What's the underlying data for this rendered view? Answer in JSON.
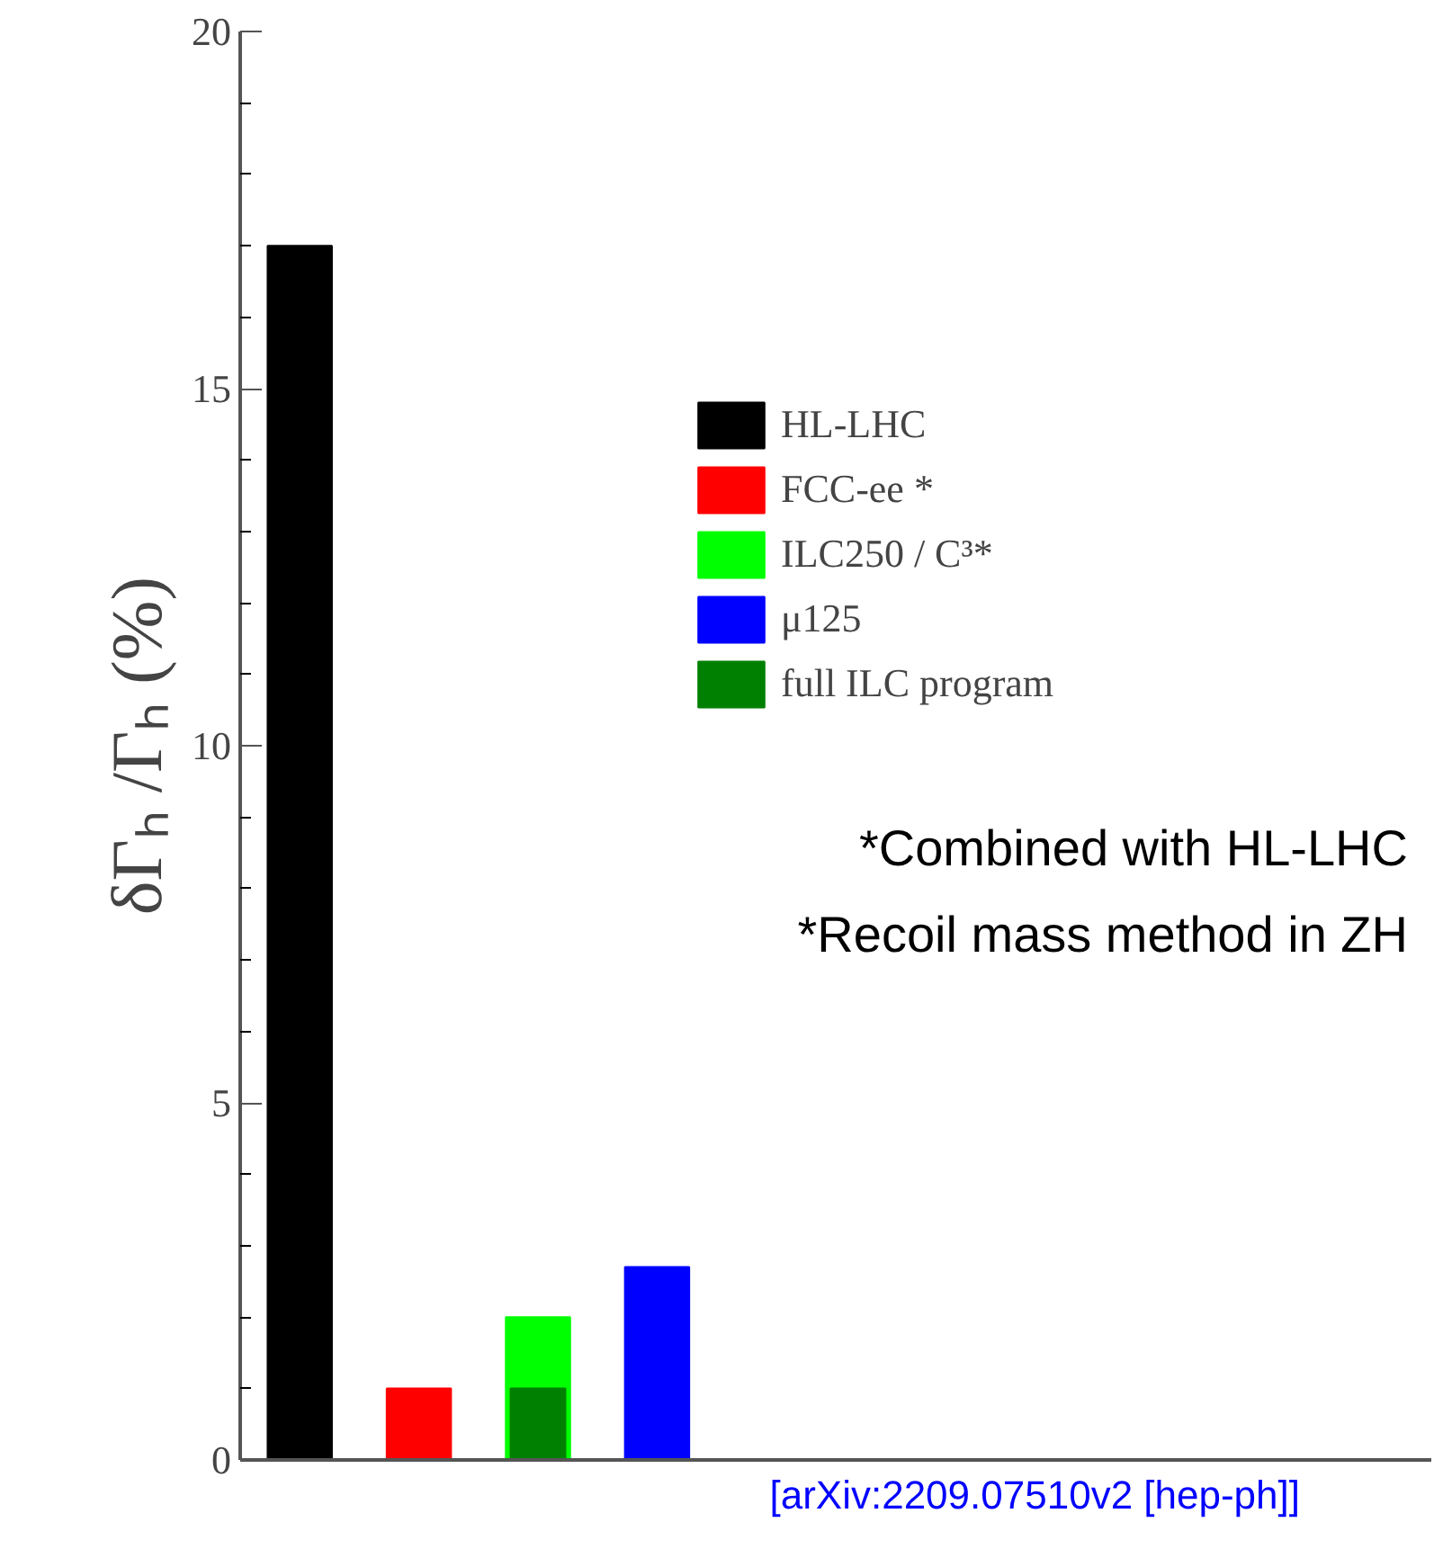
{
  "chart_data": {
    "type": "bar",
    "ylabel": "δΓₕ /Γₕ (%)",
    "categories": [
      null,
      null,
      null,
      null,
      null,
      null,
      null,
      null,
      null,
      null
    ],
    "series": [
      {
        "name": "HL-LHC",
        "color": "#000000",
        "values": [
          17,
          null,
          null,
          null,
          null,
          null,
          null,
          null,
          null,
          null
        ]
      },
      {
        "name": "FCC-ee *",
        "color": "#ff0000",
        "values": [
          null,
          1,
          null,
          null,
          null,
          null,
          null,
          null,
          null,
          null
        ]
      },
      {
        "name": "ILC250 / C³*",
        "color": "#00ff00",
        "values": [
          null,
          null,
          2,
          null,
          null,
          null,
          null,
          null,
          null,
          null
        ]
      },
      {
        "name": "μ125",
        "color": "#0000ff",
        "values": [
          null,
          null,
          null,
          2.7,
          null,
          null,
          null,
          null,
          null,
          null
        ]
      },
      {
        "name": "full ILC program",
        "color": "#008000",
        "values": [
          null,
          null,
          1,
          null,
          null,
          null,
          null,
          null,
          null,
          null
        ]
      }
    ],
    "ylim": [
      0,
      20
    ],
    "yticks": [
      0,
      5,
      10,
      15,
      20
    ],
    "tick_labels": "y",
    "legend": "top",
    "annotations": [
      "*Combined with HL-LHC",
      "*Recoil mass method in ZH",
      "[arXiv:2209.07510v2 [hep-ph]]"
    ]
  }
}
